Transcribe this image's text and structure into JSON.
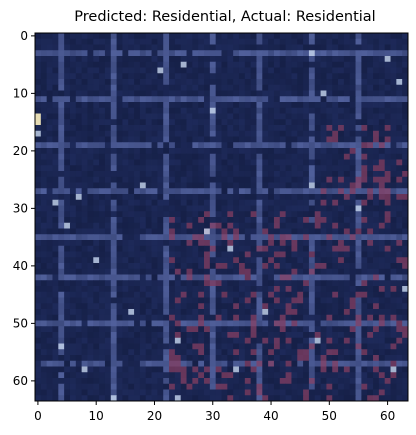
{
  "chart_data": {
    "type": "heatmap",
    "title": "Predicted: Residential, Actual: Residential",
    "xlabel": "",
    "ylabel": "",
    "image_width": 64,
    "image_height": 64,
    "xlim": [
      -0.5,
      63.5
    ],
    "ylim": [
      63.5,
      -0.5
    ],
    "x_ticks": [
      0,
      10,
      20,
      30,
      40,
      50,
      60
    ],
    "y_ticks": [
      0,
      10,
      20,
      30,
      40,
      50,
      60
    ],
    "x_tick_labels": [
      "0",
      "10",
      "20",
      "30",
      "40",
      "50",
      "60"
    ],
    "y_tick_labels": [
      "0",
      "10",
      "20",
      "30",
      "40",
      "50",
      "60"
    ],
    "grid": false,
    "content": "satellite image tile (residential area)",
    "colors": {
      "base": "#1e2a5a",
      "road": "#5a6aa8",
      "roof_red": "#8a3f62",
      "bright": "#c8d8f0",
      "dark": "#111a3c"
    }
  }
}
